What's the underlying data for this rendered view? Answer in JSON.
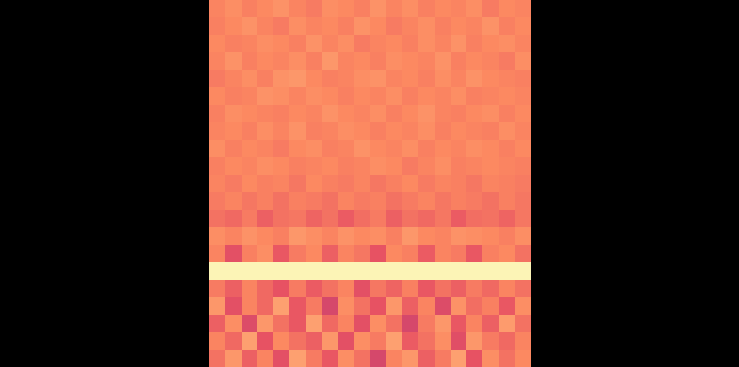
{
  "chart_data": {
    "type": "heatmap",
    "cells": [
      [
        74,
        76,
        73,
        75,
        77,
        74,
        72,
        76,
        75,
        73,
        77,
        74,
        76,
        73,
        75,
        74,
        76,
        72,
        75,
        74
      ],
      [
        73,
        75,
        77,
        74,
        72,
        76,
        74,
        75,
        73,
        77,
        75,
        72,
        74,
        76,
        73,
        75,
        74,
        77,
        73,
        75
      ],
      [
        75,
        73,
        74,
        76,
        75,
        73,
        77,
        74,
        76,
        72,
        74,
        75,
        73,
        76,
        74,
        77,
        73,
        75,
        76,
        74
      ],
      [
        74,
        77,
        73,
        75,
        74,
        76,
        73,
        78,
        74,
        75,
        73,
        76,
        75,
        74,
        77,
        73,
        75,
        74,
        72,
        76
      ],
      [
        72,
        74,
        76,
        73,
        77,
        78,
        75,
        73,
        74,
        76,
        77,
        74,
        75,
        73,
        76,
        74,
        77,
        75,
        74,
        73
      ],
      [
        75,
        73,
        74,
        77,
        76,
        74,
        76,
        75,
        73,
        75,
        74,
        76,
        73,
        75,
        74,
        76,
        73,
        74,
        75,
        74
      ],
      [
        73,
        76,
        75,
        74,
        73,
        75,
        74,
        77,
        75,
        74,
        76,
        73,
        75,
        77,
        74,
        73,
        75,
        76,
        73,
        75
      ],
      [
        74,
        75,
        73,
        76,
        74,
        77,
        73,
        74,
        76,
        75,
        73,
        75,
        74,
        76,
        73,
        75,
        74,
        73,
        76,
        74
      ],
      [
        76,
        73,
        75,
        74,
        72,
        75,
        76,
        73,
        74,
        77,
        75,
        74,
        76,
        73,
        75,
        74,
        76,
        75,
        73,
        75
      ],
      [
        73,
        75,
        74,
        76,
        75,
        73,
        74,
        75,
        73,
        74,
        76,
        75,
        72,
        74,
        76,
        73,
        74,
        75,
        74,
        73
      ],
      [
        74,
        72,
        75,
        73,
        74,
        71,
        75,
        73,
        72,
        74,
        71,
        73,
        75,
        72,
        74,
        73,
        71,
        74,
        73,
        72
      ],
      [
        72,
        74,
        71,
        73,
        70,
        73,
        72,
        70,
        74,
        72,
        73,
        70,
        72,
        74,
        71,
        73,
        72,
        70,
        73,
        71
      ],
      [
        70,
        68,
        72,
        66,
        70,
        71,
        67,
        70,
        65,
        69,
        72,
        66,
        70,
        68,
        71,
        65,
        69,
        70,
        67,
        71
      ],
      [
        76,
        74,
        77,
        75,
        73,
        78,
        76,
        74,
        77,
        75,
        76,
        73,
        78,
        75,
        74,
        77,
        76,
        75,
        73,
        76
      ],
      [
        74,
        62,
        73,
        76,
        64,
        72,
        75,
        66,
        74,
        71,
        63,
        75,
        73,
        65,
        74,
        72,
        64,
        73,
        75,
        70
      ],
      [
        98,
        98,
        98,
        98,
        98,
        98,
        98,
        98,
        98,
        98,
        98,
        98,
        98,
        98,
        98,
        98,
        98,
        98,
        98,
        98
      ],
      [
        72,
        66,
        74,
        68,
        63,
        72,
        65,
        70,
        74,
        62,
        71,
        67,
        73,
        64,
        70,
        66,
        72,
        68,
        74,
        70
      ],
      [
        78,
        62,
        74,
        68,
        80,
        64,
        72,
        58,
        76,
        70,
        63,
        78,
        66,
        74,
        60,
        77,
        69,
        73,
        64,
        76
      ],
      [
        66,
        76,
        60,
        78,
        70,
        64,
        80,
        68,
        74,
        62,
        76,
        70,
        58,
        72,
        78,
        64,
        74,
        66,
        79,
        70
      ],
      [
        74,
        68,
        80,
        63,
        75,
        70,
        66,
        78,
        62,
        76,
        72,
        80,
        65,
        70,
        76,
        61,
        78,
        72,
        68,
        74
      ],
      [
        70,
        78,
        66,
        74,
        62,
        80,
        72,
        64,
        76,
        70,
        58,
        74,
        78,
        66,
        72,
        80,
        63,
        76,
        70,
        75
      ]
    ],
    "color_range": [
      0,
      100
    ],
    "xlim": [
      -0.5,
      19.5
    ],
    "ylim": [
      20.5,
      -0.5
    ],
    "tick_labels": false
  }
}
